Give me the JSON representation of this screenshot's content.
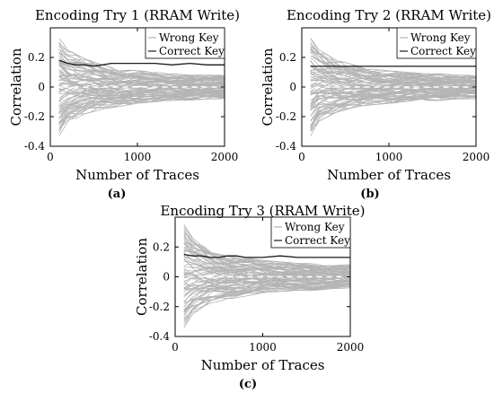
{
  "chart_data": [
    {
      "type": "line",
      "title": "Encoding Try 1 (RRAM Write)",
      "xlabel": "Number of Traces",
      "ylabel": "Correlation",
      "xlim": [
        0,
        2000
      ],
      "ylim": [
        -0.4,
        0.4
      ],
      "xticks": [
        "0",
        "1000",
        "2000"
      ],
      "yticks": [
        "-0.4",
        "-0.2",
        "0",
        "0.2"
      ],
      "legend": {
        "position": "top-right",
        "entries": [
          "Wrong Key",
          "Correct Key"
        ]
      },
      "colors": {
        "wrong": "#b4b4b4",
        "correct": "#1a1a1a"
      },
      "caption": "(a)",
      "series": [
        {
          "name": "Correct Key",
          "x": [
            100,
            200,
            300,
            400,
            500,
            600,
            700,
            800,
            900,
            1000,
            1200,
            1400,
            1600,
            1800,
            2000
          ],
          "values": [
            0.18,
            0.16,
            0.15,
            0.15,
            0.14,
            0.15,
            0.16,
            0.16,
            0.16,
            0.16,
            0.16,
            0.15,
            0.16,
            0.15,
            0.15
          ]
        },
        {
          "name": "Wrong Key",
          "x": [
            100,
            200,
            400,
            600,
            800,
            1000,
            1200,
            1400,
            1600,
            1800,
            2000
          ],
          "upper_envelope": [
            0.34,
            0.25,
            0.19,
            0.15,
            0.12,
            0.11,
            0.1,
            0.09,
            0.08,
            0.08,
            0.08
          ],
          "lower_envelope": [
            -0.33,
            -0.24,
            -0.18,
            -0.15,
            -0.13,
            -0.11,
            -0.1,
            -0.09,
            -0.09,
            -0.08,
            -0.08
          ]
        }
      ]
    },
    {
      "type": "line",
      "title": "Encoding Try 2 (RRAM Write)",
      "xlabel": "Number of Traces",
      "ylabel": "Correlation",
      "xlim": [
        0,
        2000
      ],
      "ylim": [
        -0.4,
        0.4
      ],
      "xticks": [
        "0",
        "1000",
        "2000"
      ],
      "yticks": [
        "-0.4",
        "-0.2",
        "0",
        "0.2"
      ],
      "legend": {
        "position": "top-right",
        "entries": [
          "Wrong Key",
          "Correct Key"
        ]
      },
      "colors": {
        "wrong": "#b4b4b4",
        "correct": "#1a1a1a"
      },
      "caption": "(b)",
      "series": [
        {
          "name": "Correct Key",
          "x": [
            100,
            200,
            300,
            400,
            500,
            600,
            700,
            800,
            900,
            1000,
            1200,
            1400,
            1600,
            1800,
            2000
          ],
          "values": [
            0.14,
            0.14,
            0.14,
            0.14,
            0.14,
            0.14,
            0.14,
            0.14,
            0.14,
            0.14,
            0.14,
            0.14,
            0.14,
            0.14,
            0.14
          ]
        },
        {
          "name": "Wrong Key",
          "x": [
            100,
            200,
            400,
            600,
            800,
            1000,
            1200,
            1400,
            1600,
            1800,
            2000
          ],
          "upper_envelope": [
            0.33,
            0.25,
            0.18,
            0.15,
            0.12,
            0.11,
            0.1,
            0.09,
            0.09,
            0.08,
            0.08
          ],
          "lower_envelope": [
            -0.34,
            -0.23,
            -0.17,
            -0.14,
            -0.12,
            -0.11,
            -0.1,
            -0.09,
            -0.09,
            -0.08,
            -0.08
          ]
        }
      ]
    },
    {
      "type": "line",
      "title": "Encoding Try 3 (RRAM Write)",
      "xlabel": "Number of Traces",
      "ylabel": "Correlation",
      "xlim": [
        0,
        2000
      ],
      "ylim": [
        -0.4,
        0.4
      ],
      "xticks": [
        "0",
        "1000",
        "2000"
      ],
      "yticks": [
        "-0.4",
        "-0.2",
        "0",
        "0.2"
      ],
      "legend": {
        "position": "top-right",
        "entries": [
          "Wrong Key",
          "Correct Key"
        ]
      },
      "colors": {
        "wrong": "#b4b4b4",
        "correct": "#1a1a1a"
      },
      "caption": "(c)",
      "series": [
        {
          "name": "Correct Key",
          "x": [
            100,
            200,
            300,
            400,
            500,
            600,
            700,
            800,
            900,
            1000,
            1200,
            1400,
            1600,
            1800,
            2000
          ],
          "values": [
            0.15,
            0.14,
            0.14,
            0.13,
            0.13,
            0.14,
            0.14,
            0.13,
            0.13,
            0.13,
            0.14,
            0.13,
            0.13,
            0.13,
            0.13
          ]
        },
        {
          "name": "Wrong Key",
          "x": [
            100,
            200,
            400,
            600,
            800,
            1000,
            1200,
            1400,
            1600,
            1800,
            2000
          ],
          "upper_envelope": [
            0.35,
            0.26,
            0.19,
            0.15,
            0.13,
            0.11,
            0.1,
            0.09,
            0.09,
            0.08,
            0.08
          ],
          "lower_envelope": [
            -0.34,
            -0.25,
            -0.18,
            -0.15,
            -0.13,
            -0.11,
            -0.1,
            -0.09,
            -0.09,
            -0.08,
            -0.08
          ]
        }
      ]
    }
  ]
}
